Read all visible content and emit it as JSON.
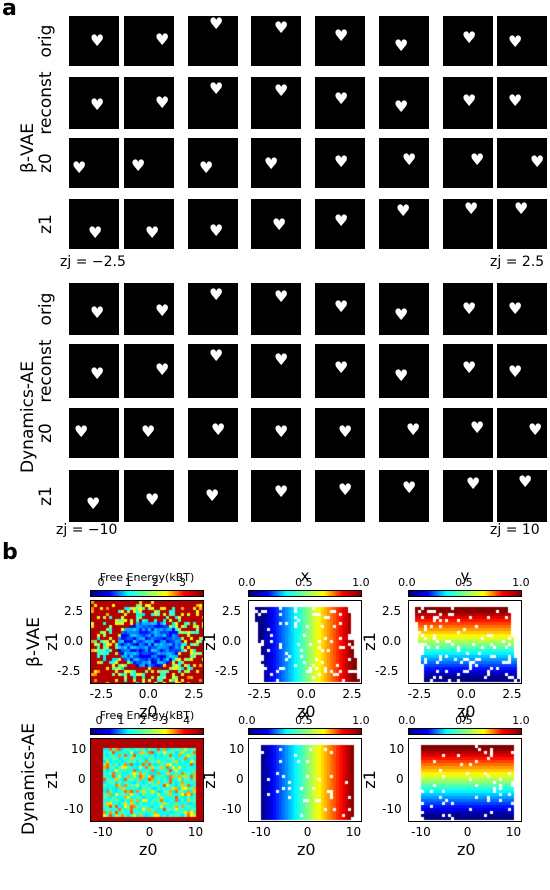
{
  "panel_a": {
    "letter": "a",
    "beta_vae": {
      "group_label": "β-VAE",
      "rows": [
        {
          "label": "orig",
          "key": "orig"
        },
        {
          "label": "reconst",
          "key": "reconst"
        },
        {
          "label": "z0",
          "key": "z0"
        },
        {
          "label": "z1",
          "key": "z1"
        }
      ],
      "range_left": "zj = −2.5",
      "range_right": "zj = 2.5"
    },
    "dynamics_ae": {
      "group_label": "Dynamics-AE",
      "rows": [
        {
          "label": "orig",
          "key": "orig"
        },
        {
          "label": "reconst",
          "key": "reconst"
        },
        {
          "label": "z0",
          "key": "z0"
        },
        {
          "label": "z1",
          "key": "z1"
        }
      ],
      "range_left": "zj = −10",
      "range_right": "zj = 10"
    },
    "heart_glyph": "♥"
  },
  "panel_b": {
    "letter": "b",
    "row_labels": [
      "β-VAE",
      "Dynamics-AE"
    ],
    "beta_vae": {
      "free_energy": {
        "cbar_title": "Free Energy(kBT)",
        "cbar_ticks": [
          "0",
          "1",
          "2",
          "3"
        ],
        "xticks": [
          "-2.5",
          "0.0",
          "2.5"
        ],
        "yticks": [
          "2.5",
          "0.0",
          "-2.5"
        ],
        "xlabel": "z0",
        "ylabel": "z1"
      },
      "x": {
        "cbar_title": "x",
        "cbar_ticks": [
          "0.0",
          "0.5",
          "1.0"
        ],
        "xticks": [
          "-2.5",
          "0.0",
          "2.5"
        ],
        "yticks": [
          "2.5",
          "0.0",
          "-2.5"
        ],
        "xlabel": "z0",
        "ylabel": "z1"
      },
      "y": {
        "cbar_title": "y",
        "cbar_ticks": [
          "0.0",
          "0.5",
          "1.0"
        ],
        "xticks": [
          "-2.5",
          "0.0",
          "2.5"
        ],
        "yticks": [
          "2.5",
          "0.0",
          "-2.5"
        ],
        "xlabel": "z0",
        "ylabel": "z1"
      }
    },
    "dynamics_ae": {
      "free_energy": {
        "cbar_title": "Free Energy(kBT)",
        "cbar_ticks": [
          "0",
          "1",
          "2",
          "3",
          "4"
        ],
        "xticks": [
          "-10",
          "0",
          "10"
        ],
        "yticks": [
          "10",
          "0",
          "-10"
        ],
        "xlabel": "z0",
        "ylabel": "z1"
      },
      "x": {
        "cbar_title": "x",
        "cbar_ticks": [
          "0.0",
          "0.5",
          "1.0"
        ],
        "xticks": [
          "-10",
          "0",
          "10"
        ],
        "yticks": [
          "10",
          "0",
          "-10"
        ],
        "xlabel": "z0",
        "ylabel": "z1"
      },
      "y": {
        "cbar_title": "y",
        "cbar_ticks": [
          "0.0",
          "0.5",
          "1.0"
        ],
        "xticks": [
          "-10",
          "0",
          "10"
        ],
        "yticks": [
          "10",
          "0",
          "-10"
        ],
        "xlabel": "z0",
        "ylabel": "z1"
      }
    }
  }
}
